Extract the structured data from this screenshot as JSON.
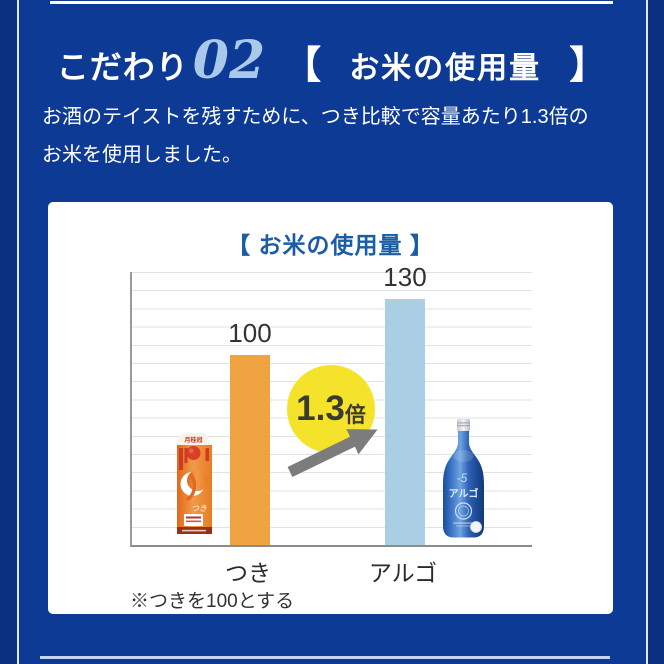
{
  "header": {
    "label": "こだわり",
    "number": "02",
    "bracket_open": "【",
    "title": "お米の使用量",
    "bracket_close": "】"
  },
  "description": {
    "line1": "お酒のテイストを残すために、つき比較で容量あたり1.3倍の",
    "line2": "お米を使用しました。"
  },
  "card": {
    "title": "【 お米の使用量 】",
    "footnote": "※つきを100とする"
  },
  "badge": {
    "value": "1.3",
    "unit": "倍"
  },
  "products": {
    "carton_brand": "月桂冠",
    "carton_label": "つき",
    "bottle_number": "-5",
    "bottle_label": "アルゴ"
  },
  "chart_data": {
    "type": "bar",
    "title": "【 お米の使用量 】",
    "categories": [
      "つき",
      "アルゴ"
    ],
    "values": [
      100,
      130
    ],
    "value_labels": [
      "100",
      "130"
    ],
    "bar_colors": [
      "#f0a441",
      "#aacfe5"
    ],
    "xlabel": "",
    "ylabel": "",
    "ylim": [
      0,
      144
    ],
    "grid": true,
    "gridline_interval": 10,
    "legend": false,
    "note": "※つきを100とする",
    "annotation": "1.3倍"
  },
  "colors": {
    "background": "#0c3a94",
    "background_outer": "#092f7e",
    "accent_number": "#a9c9ea",
    "card_title_blue": "#1b5ca6",
    "bar_tsuki_orange": "#f0a441",
    "bar_argo_blue": "#aacfe5",
    "badge_yellow": "#f5e32b",
    "arrow_gray": "#7c7c7c",
    "text_white": "#ffffff",
    "text_dark": "#333333"
  }
}
